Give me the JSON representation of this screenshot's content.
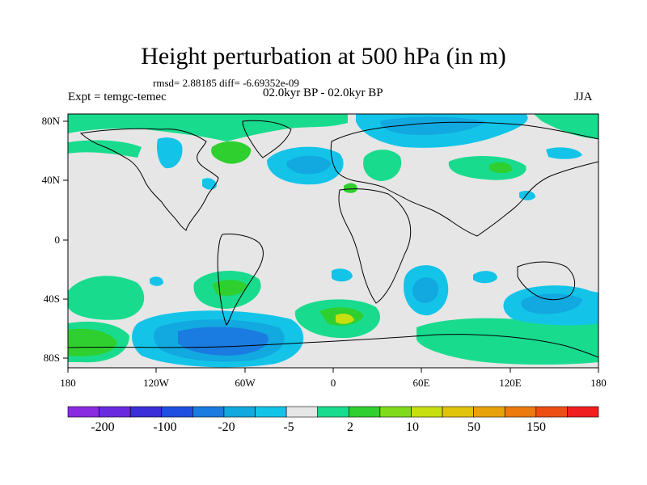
{
  "title": "Height perturbation at 500 hPa (in m)",
  "stats": "rmsd= 2.88185 diff= -6.69352e-09",
  "expt": "Expt = temgc-temec",
  "period": "02.0kyr BP - 02.0kyr BP",
  "season": "JJA",
  "lat_labels": [
    "80N",
    "40N",
    "0",
    "40S",
    "80S"
  ],
  "lon_labels": [
    "180",
    "120W",
    "60W",
    "0",
    "60E",
    "120E",
    "180"
  ],
  "colorbar": {
    "labels": [
      "-200",
      "-100",
      "-20",
      "-5",
      "2",
      "10",
      "50",
      "150"
    ],
    "colors": [
      "#8a2be2",
      "#6a2be0",
      "#3a2fd8",
      "#1f4fe0",
      "#1a7be0",
      "#12a8e0",
      "#13c4e8",
      "#e6e6e6",
      "#19db8e",
      "#2fcf2f",
      "#7fdb1c",
      "#c8df10",
      "#e0c40a",
      "#e8a20a",
      "#ec7a0c",
      "#ee4e12",
      "#f01e1e"
    ]
  },
  "colors": {
    "land_bg": "#e6e6e6",
    "coast": "#000000",
    "pos_weak": "#19db8e",
    "pos_mid": "#2fcf2f",
    "pos_strong": "#c8df10",
    "neg_weak": "#13c4e8",
    "neg_mid": "#12a8e0",
    "neg_strong": "#1a7be0"
  }
}
